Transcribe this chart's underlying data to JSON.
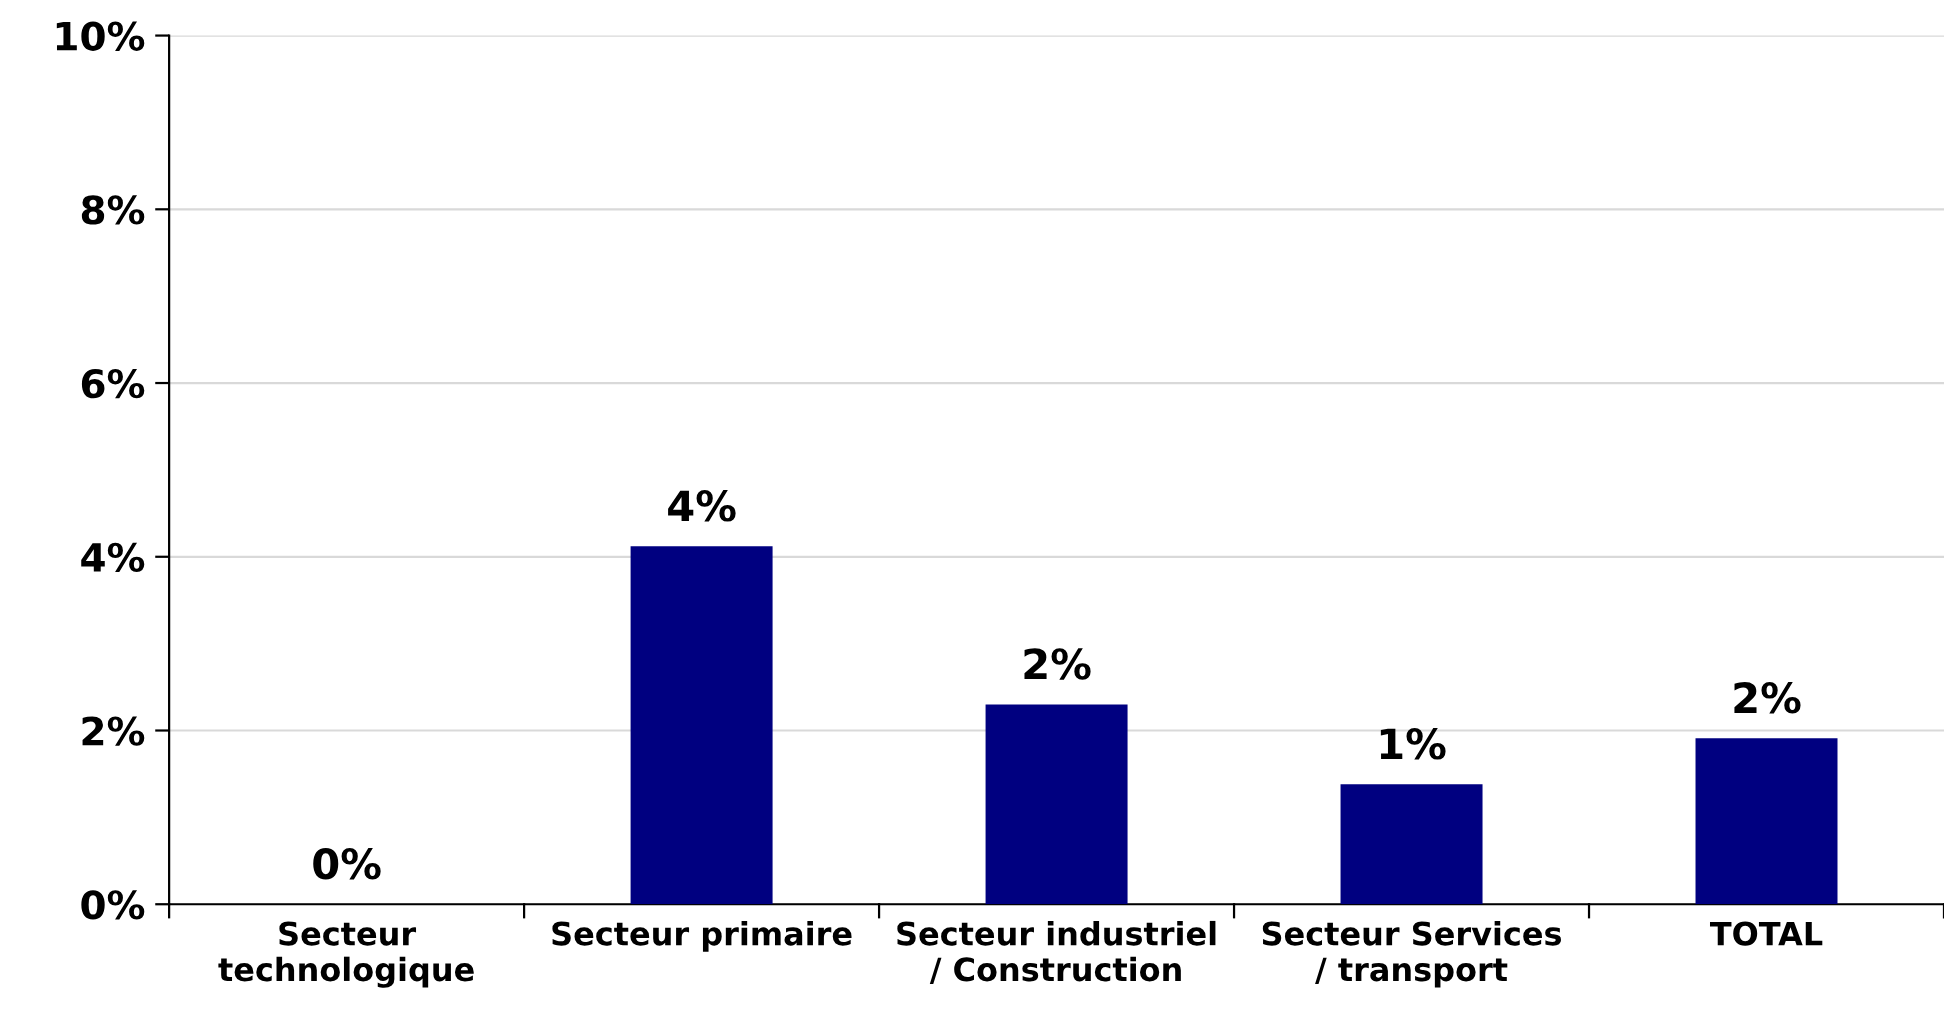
{
  "chart_data": {
    "type": "bar",
    "categories": [
      "Secteur\ntechnologique",
      "Secteur primaire",
      "Secteur industriel\n/ Construction",
      "Secteur Services\n/ transport",
      "TOTAL"
    ],
    "values": [
      0,
      4.12,
      2.3,
      1.38,
      1.91
    ],
    "value_labels": [
      "0%",
      "4%",
      "2%",
      "1%",
      "2%"
    ],
    "color": "#000080",
    "ylim": [
      0,
      10
    ],
    "yticks": [
      {
        "value": 0,
        "label": "0%"
      },
      {
        "value": 2,
        "label": "2%"
      },
      {
        "value": 4,
        "label": "4%"
      },
      {
        "value": 6,
        "label": "6%"
      },
      {
        "value": 8,
        "label": "8%"
      },
      {
        "value": 10,
        "label": "10%"
      }
    ],
    "grid": "y"
  }
}
